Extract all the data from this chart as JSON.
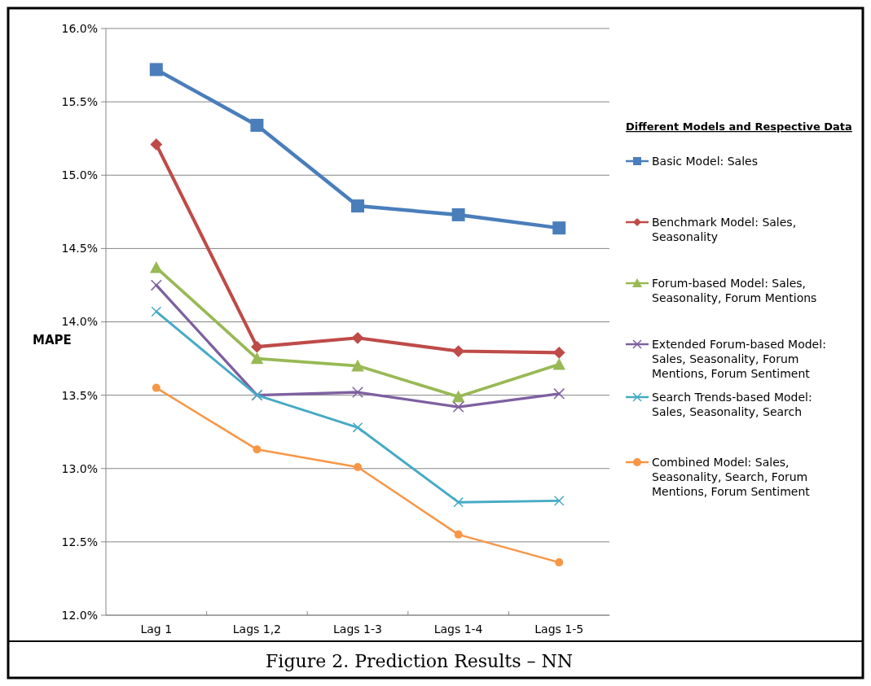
{
  "chart_data": {
    "type": "line",
    "title": "Figure 2. Prediction Results – NN",
    "ylabel": "MAPE",
    "legend_title": "Different Models and Respective Data",
    "categories": [
      "Lag 1",
      "Lags 1,2",
      "Lags 1-3",
      "Lags 1-4",
      "Lags 1-5"
    ],
    "ylim": [
      12,
      16
    ],
    "yticks": [
      {
        "value": 12,
        "label": "12.0%"
      },
      {
        "value": 12.5,
        "label": "12.5%"
      },
      {
        "value": 13,
        "label": "13.0%"
      },
      {
        "value": 13.5,
        "label": "13.5%"
      },
      {
        "value": 14,
        "label": "14.0%"
      },
      {
        "value": 14.5,
        "label": "14.5%"
      },
      {
        "value": 15,
        "label": "15.0%"
      },
      {
        "value": 15.5,
        "label": "15.5%"
      },
      {
        "value": 16,
        "label": "16.0%"
      }
    ],
    "grid": "y",
    "legend": "right",
    "line_style": "solid",
    "series": [
      {
        "name": "Basic Model: Sales",
        "color": "#4a7ebb",
        "marker": "square",
        "values": [
          15.72,
          15.34,
          14.79,
          14.73,
          14.64
        ]
      },
      {
        "name": "Benchmark Model: Sales, Seasonality",
        "color": "#be4b48",
        "marker": "diamond",
        "values": [
          15.21,
          13.83,
          13.89,
          13.8,
          13.79
        ]
      },
      {
        "name": "Forum-based Model: Sales, Seasonality, Forum Mentions",
        "color": "#98b954",
        "marker": "triangle",
        "values": [
          14.37,
          13.75,
          13.7,
          13.49,
          13.71
        ]
      },
      {
        "name": "Extended Forum-based Model: Sales, Seasonality, Forum Mentions, Forum Sentiment",
        "color": "#7d60a0",
        "marker": "cross",
        "values": [
          14.25,
          13.5,
          13.52,
          13.42,
          13.51
        ]
      },
      {
        "name": "Search Trends-based Model: Sales, Seasonality, Search",
        "color": "#46aac5",
        "marker": "cross",
        "values": [
          14.07,
          13.5,
          13.28,
          12.77,
          12.78
        ]
      },
      {
        "name": "Combined Model: Sales, Seasonality, Search, Forum Mentions, Forum Sentiment",
        "color": "#f79646",
        "marker": "circle",
        "values": [
          13.55,
          13.13,
          13.01,
          12.55,
          12.36
        ]
      }
    ]
  }
}
